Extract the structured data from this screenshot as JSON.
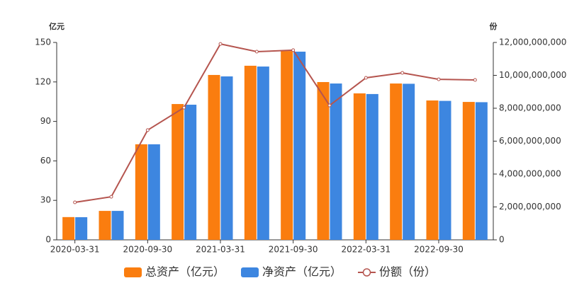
{
  "chart_data": {
    "type": "bar",
    "y_unit": "亿元",
    "y2_unit": "份",
    "categories": [
      "2020-03-31",
      null,
      "2020-09-30",
      null,
      "2021-03-31",
      null,
      "2021-09-30",
      null,
      "2022-03-31",
      null,
      "2022-09-30",
      null
    ],
    "series": [
      {
        "name": "总资产（亿元）",
        "color": "#fa7d0f",
        "values": [
          17.3,
          22.0,
          72.6,
          103.2,
          125.3,
          132.3,
          143.5,
          119.9,
          111.3,
          118.8,
          105.9,
          104.8
        ]
      },
      {
        "name": "净资产（亿元）",
        "color": "#3d86e0",
        "values": [
          17.2,
          22.0,
          72.6,
          102.7,
          124.2,
          131.7,
          143.0,
          118.8,
          110.8,
          118.6,
          105.6,
          104.6
        ]
      },
      {
        "name": "份额（份）",
        "color": "#b5554f",
        "type": "line",
        "axis": "y2",
        "values": [
          2280000000,
          2620000000,
          6670000000,
          8040000000,
          11910000000,
          11440000000,
          11530000000,
          8170000000,
          9850000000,
          10150000000,
          9760000000,
          9720000000
        ]
      }
    ],
    "ylim": [
      0,
      150
    ],
    "yticks": [
      0,
      30,
      60,
      90,
      120,
      150
    ],
    "y2lim": [
      0,
      12000000000
    ],
    "y2ticks": [
      0,
      {
        "value": 2000000000,
        "label": "2,000,000,000"
      },
      {
        "value": 4000000000,
        "label": "4,000,000,000"
      },
      {
        "value": 6000000000,
        "label": "6,000,000,000"
      },
      {
        "value": 8000000000,
        "label": "8,000,000,000"
      },
      {
        "value": 10000000000,
        "label": "10,000,000,000"
      },
      {
        "value": 12000000000,
        "label": "12,000,000,000"
      }
    ],
    "grid": false
  }
}
